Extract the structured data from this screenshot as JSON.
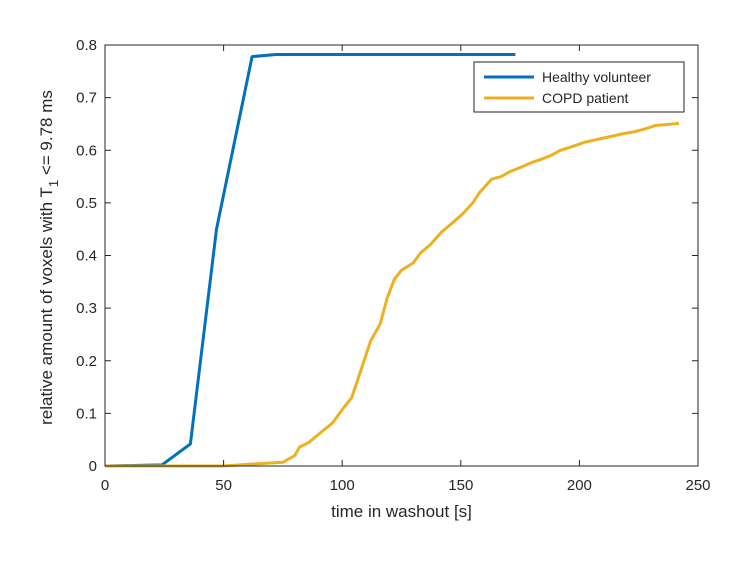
{
  "chart_data": {
    "type": "line",
    "title": "",
    "xlabel": "time in washout [s]",
    "ylabel": {
      "main": "relative amount of voxels with T",
      "subscript": "1",
      "tail": " <= 9.78 ms"
    },
    "xlim": [
      0,
      250
    ],
    "ylim": [
      0,
      0.8
    ],
    "xticks": [
      "0",
      "50",
      "100",
      "150",
      "200",
      "250"
    ],
    "yticks": [
      "0",
      "0.1",
      "0.2",
      "0.3",
      "0.4",
      "0.5",
      "0.6",
      "0.7",
      "0.8"
    ],
    "grid": false,
    "legend_position": "top-right",
    "series": [
      {
        "name": "Healthy volunteer",
        "color": "#0072BD",
        "points": [
          [
            0,
            0.0
          ],
          [
            24,
            0.002
          ],
          [
            36,
            0.042
          ],
          [
            47,
            0.45
          ],
          [
            62,
            0.778
          ],
          [
            72,
            0.782
          ],
          [
            100,
            0.782
          ],
          [
            150,
            0.782
          ],
          [
            173,
            0.782
          ]
        ]
      },
      {
        "name": "COPD patient",
        "color": "#EDB120",
        "points": [
          [
            0,
            0.0
          ],
          [
            24,
            0.0
          ],
          [
            50,
            0.0
          ],
          [
            60,
            0.003
          ],
          [
            75,
            0.007
          ],
          [
            80,
            0.02
          ],
          [
            82,
            0.036
          ],
          [
            86,
            0.045
          ],
          [
            90,
            0.06
          ],
          [
            96,
            0.082
          ],
          [
            100,
            0.107
          ],
          [
            104,
            0.13
          ],
          [
            107,
            0.17
          ],
          [
            112,
            0.238
          ],
          [
            116,
            0.27
          ],
          [
            119,
            0.32
          ],
          [
            122,
            0.355
          ],
          [
            125,
            0.372
          ],
          [
            130,
            0.386
          ],
          [
            133,
            0.405
          ],
          [
            137,
            0.42
          ],
          [
            142,
            0.445
          ],
          [
            146,
            0.46
          ],
          [
            151,
            0.48
          ],
          [
            155,
            0.5
          ],
          [
            158,
            0.52
          ],
          [
            163,
            0.545
          ],
          [
            167,
            0.55
          ],
          [
            171,
            0.56
          ],
          [
            175,
            0.567
          ],
          [
            180,
            0.577
          ],
          [
            184,
            0.583
          ],
          [
            188,
            0.59
          ],
          [
            192,
            0.6
          ],
          [
            197,
            0.607
          ],
          [
            202,
            0.615
          ],
          [
            207,
            0.62
          ],
          [
            213,
            0.626
          ],
          [
            218,
            0.631
          ],
          [
            223,
            0.635
          ],
          [
            228,
            0.641
          ],
          [
            232,
            0.647
          ],
          [
            237,
            0.649
          ],
          [
            242,
            0.651
          ]
        ]
      }
    ]
  }
}
